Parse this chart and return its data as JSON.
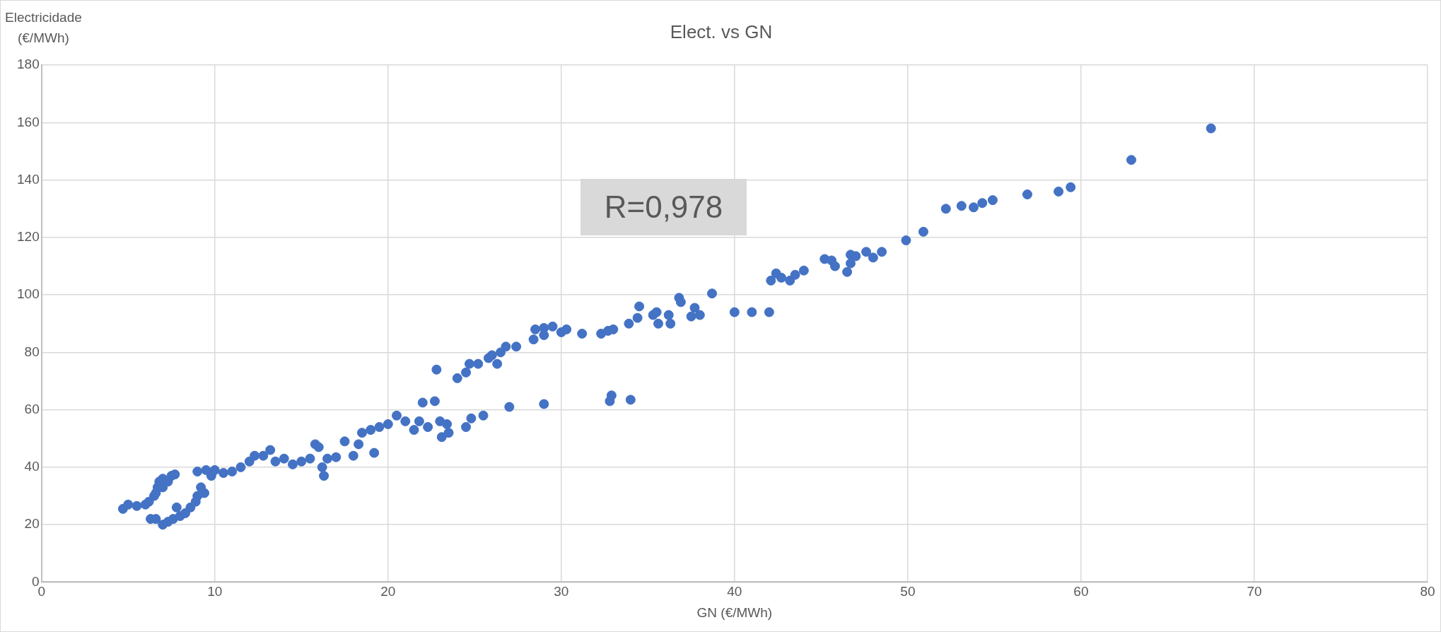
{
  "chart_data": {
    "type": "scatter",
    "title": "Elect. vs GN",
    "xlabel": "GN (€/MWh)",
    "ylabel": "Electricidade\n(€/MWh)",
    "annotations": [
      "R=0,978"
    ],
    "x": [
      4.7,
      5,
      5.5,
      6,
      6.2,
      6.5,
      6.7,
      6.8,
      7,
      7.3,
      7.5,
      7.7,
      7,
      6.6,
      6.3,
      6.6,
      7,
      7.3,
      7.6,
      7.8,
      8,
      8.3,
      8.6,
      8.9,
      9,
      9.2,
      9.4,
      9,
      9.5,
      9.8,
      10,
      10.5,
      11,
      11.5,
      12,
      12.3,
      12.8,
      13.2,
      13.5,
      14,
      14.5,
      15,
      15.5,
      15.8,
      16,
      16.2,
      16.3,
      16.5,
      17,
      17.5,
      18,
      18.3,
      18.5,
      19,
      19.2,
      19.5,
      20,
      20.5,
      21,
      21.5,
      21.8,
      22,
      22.3,
      22.7,
      23,
      23.1,
      23.4,
      23.5,
      24,
      24.5,
      24.7,
      24.5,
      24.8,
      25.2,
      25.8,
      26,
      26.3,
      26.5,
      26.8,
      25.5,
      22.8,
      27,
      27.4,
      28.4,
      28.5,
      29,
      29,
      29.5,
      29,
      30,
      30.3,
      31.2,
      32.3,
      32.7,
      33,
      32.8,
      32.9,
      34,
      33.9,
      34.4,
      34.5,
      35.3,
      35.5,
      35.6,
      36.2,
      36.3,
      36.8,
      36.9,
      37.5,
      37.7,
      38,
      38.7,
      40,
      41,
      42,
      42.1,
      42.4,
      42.7,
      43.2,
      43.5,
      44,
      45.2,
      45.6,
      45.8,
      46.5,
      46.7,
      46.7,
      47,
      47.6,
      48,
      48.5,
      49.9,
      50.9,
      52.2,
      53.1,
      53.8,
      54.3,
      54.9,
      56.9,
      58.7,
      59.4,
      62.9,
      67.5
    ],
    "values": [
      25.5,
      27,
      26.5,
      27,
      28,
      30,
      33,
      35,
      36,
      35,
      37,
      37.5,
      33,
      31,
      22,
      22,
      20,
      21,
      22,
      26,
      23,
      24,
      26,
      28,
      30,
      33,
      31,
      38.5,
      39,
      37,
      39,
      38,
      38.5,
      40,
      42,
      44,
      44,
      46,
      42,
      43,
      41,
      42,
      43,
      48,
      47,
      40,
      37,
      43,
      43.5,
      49,
      44,
      48,
      52,
      53,
      45,
      54,
      55,
      58,
      56,
      53,
      56,
      62.5,
      54,
      63,
      56,
      50.5,
      55,
      52,
      71,
      73,
      76,
      54,
      57,
      76,
      78,
      79,
      76,
      80,
      82,
      58,
      74,
      61,
      82,
      84.5,
      88,
      88.5,
      86,
      89,
      62,
      87,
      88,
      86.5,
      86.5,
      87.5,
      88,
      63,
      65,
      63.5,
      90,
      92,
      96,
      93,
      94,
      90,
      93,
      90,
      99,
      97.5,
      92.5,
      95.5,
      93,
      100.5,
      94,
      94,
      94,
      105,
      107.5,
      106,
      105,
      107,
      108.5,
      112.5,
      112,
      110,
      108,
      111,
      114,
      113.5,
      115,
      113,
      115,
      119,
      122,
      130,
      131,
      130.5,
      132,
      133,
      135,
      136,
      137.5,
      147,
      158
    ],
    "color": "#4472c4",
    "marker": "circle",
    "xlim": [
      0,
      80
    ],
    "xticks": [
      0,
      10,
      20,
      30,
      40,
      50,
      60,
      70,
      80
    ],
    "ylim": [
      0,
      180
    ],
    "yticks": [
      0,
      20,
      40,
      60,
      80,
      100,
      120,
      140,
      160,
      180
    ],
    "grid": true,
    "legend": false
  }
}
